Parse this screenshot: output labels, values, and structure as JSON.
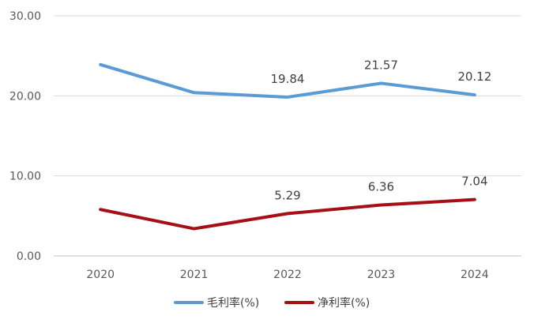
{
  "chart_data": {
    "type": "line",
    "categories": [
      "2020",
      "2021",
      "2022",
      "2023",
      "2024"
    ],
    "ylim": [
      0,
      30
    ],
    "yticks": [
      "0.00",
      "10.00",
      "20.00",
      "30.00"
    ],
    "grid": true,
    "legend_position": "bottom",
    "series": [
      {
        "name": "毛利率(%)",
        "color": "#5B9BD5",
        "values": [
          23.9,
          20.4,
          19.84,
          21.57,
          20.12
        ],
        "labels": [
          "",
          "",
          "19.84",
          "21.57",
          "20.12"
        ]
      },
      {
        "name": "净利率(%)",
        "color": "#A50F15",
        "values": [
          5.8,
          3.4,
          5.29,
          6.36,
          7.04
        ],
        "labels": [
          "",
          "",
          "5.29",
          "6.36",
          "7.04"
        ]
      }
    ]
  }
}
